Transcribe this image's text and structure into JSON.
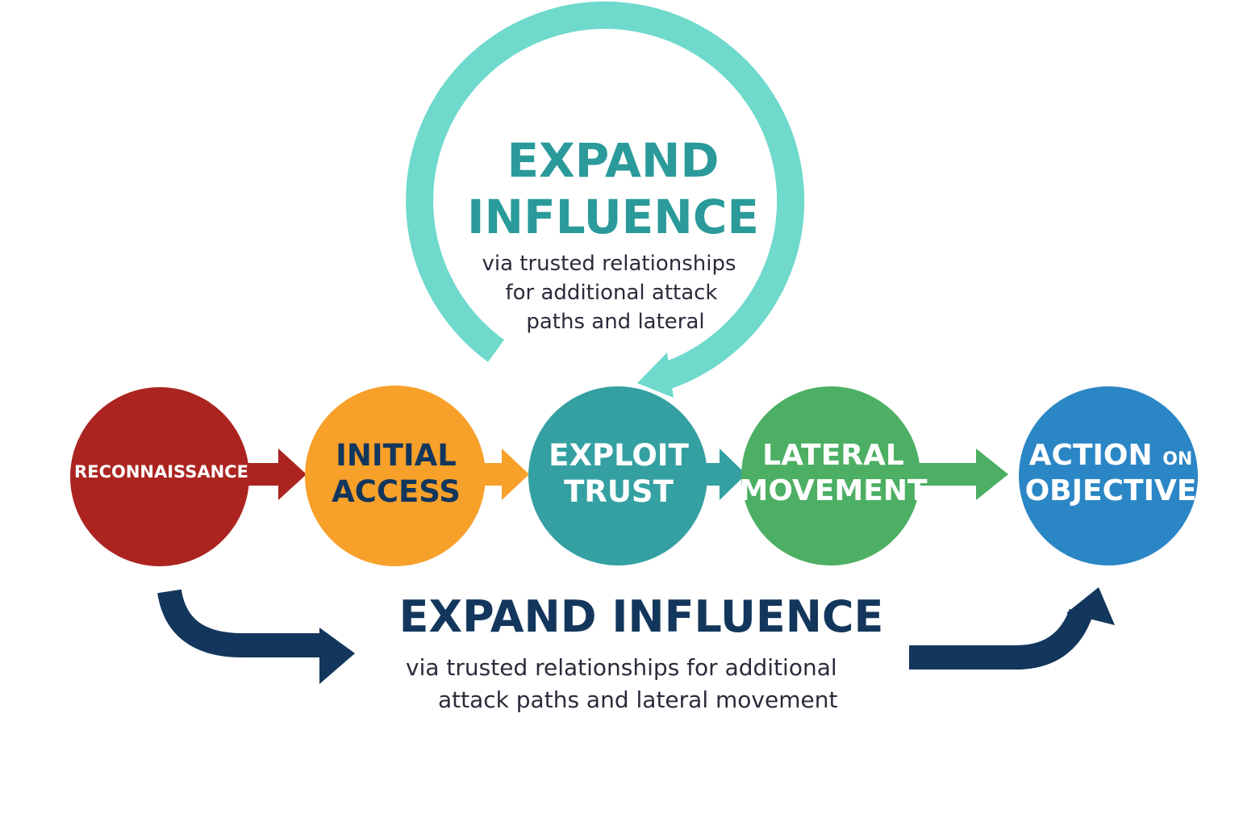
{
  "stages": [
    {
      "id": "reconnaissance",
      "lines": [
        "RECONNAISSANCE"
      ],
      "color": "#ab2420",
      "text_color": "#ffffff"
    },
    {
      "id": "initial-access",
      "lines": [
        "INITIAL",
        "ACCESS"
      ],
      "color": "#f7a02a",
      "text_color": "#13365c"
    },
    {
      "id": "exploit-trust",
      "lines": [
        "EXPLOIT",
        "TRUST"
      ],
      "color": "#35a0a2",
      "text_color": "#ffffff"
    },
    {
      "id": "lateral-movement",
      "lines": [
        "LATERAL",
        "MOVEMENT"
      ],
      "color": "#4caf63",
      "text_color": "#ffffff"
    },
    {
      "id": "action-on-objective",
      "lines": [
        "ACTION",
        "ON",
        "OBJECTIVE"
      ],
      "color": "#2b86c5",
      "text_color": "#ffffff"
    }
  ],
  "connector_colors": [
    "#ab2420",
    "#f7a02a",
    "#35a0a2",
    "#4caf63"
  ],
  "loop": {
    "title_lines": [
      "EXPAND",
      "INFLUENCE"
    ],
    "subtitle_lines": [
      "via trusted relationships",
      "for additional attack",
      "paths and lateral"
    ],
    "arc_color": "#6fd9cc",
    "title_color": "#2a9a9a"
  },
  "bottom": {
    "title": "EXPAND INFLUENCE",
    "subtitle_lines": [
      "via trusted relationships for additional",
      "attack paths and lateral movement"
    ],
    "arrow_color": "#13365c"
  }
}
